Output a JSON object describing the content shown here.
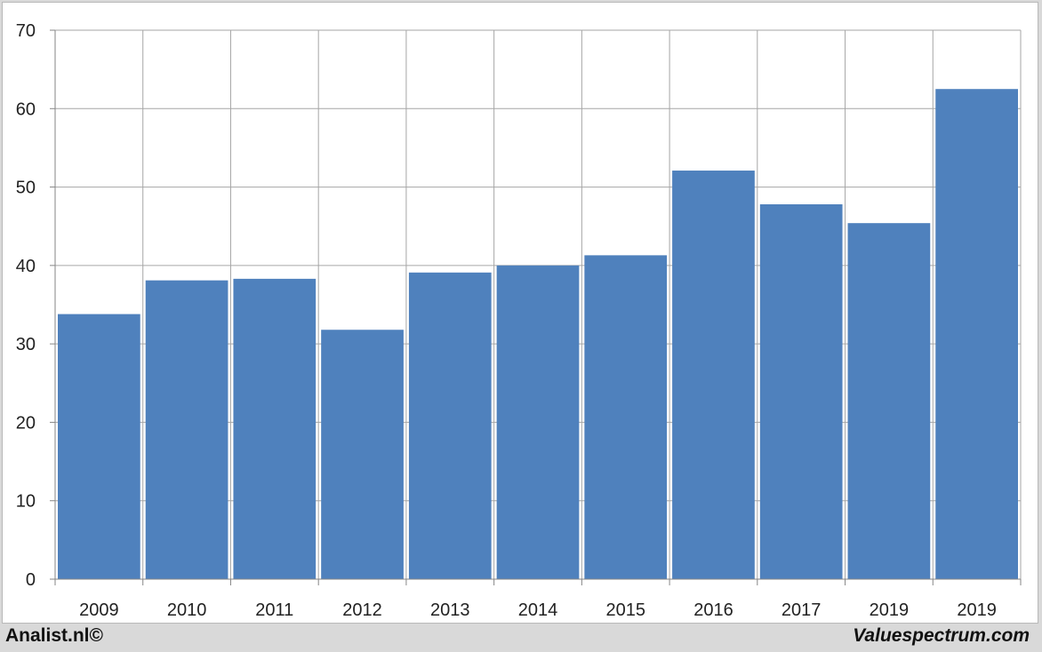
{
  "chart_data": {
    "type": "bar",
    "categories": [
      "2009",
      "2010",
      "2011",
      "2012",
      "2013",
      "2014",
      "2015",
      "2016",
      "2017",
      "2019",
      "2019"
    ],
    "values": [
      33.8,
      38.1,
      38.3,
      31.8,
      39.1,
      40.0,
      41.3,
      52.1,
      47.8,
      45.4,
      62.5
    ],
    "ylim": [
      0,
      70
    ],
    "yticks": [
      0,
      10,
      20,
      30,
      40,
      50,
      60,
      70
    ],
    "grid": true,
    "title": "",
    "xlabel": "",
    "ylabel": ""
  },
  "colors": {
    "bar": "#4f81bd",
    "grid": "#a6a6a6",
    "axis": "#868686",
    "background": "#ffffff",
    "outer": "#d9d9d9"
  },
  "footer": {
    "left": "Analist.nl©",
    "right": "Valuespectrum.com"
  }
}
